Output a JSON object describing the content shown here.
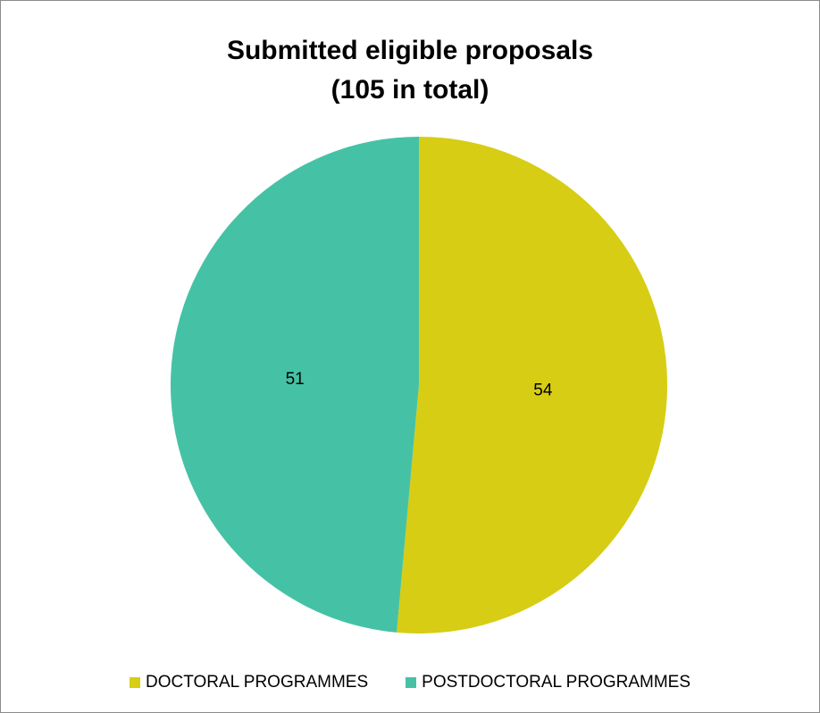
{
  "chart_data": {
    "type": "pie",
    "title": [
      "Submitted eligible proposals",
      "(105 in total)"
    ],
    "series": [
      {
        "categories": [
          "DOCTORAL PROGRAMMES",
          "POSTDOCTORAL PROGRAMMES"
        ],
        "values": [
          54,
          51
        ],
        "colors": [
          "#d7cd14",
          "#45c2a5"
        ]
      }
    ],
    "data_labels": [
      "54",
      "51"
    ],
    "start_angle": "12 o'clock, clockwise",
    "legend_position": "bottom"
  }
}
